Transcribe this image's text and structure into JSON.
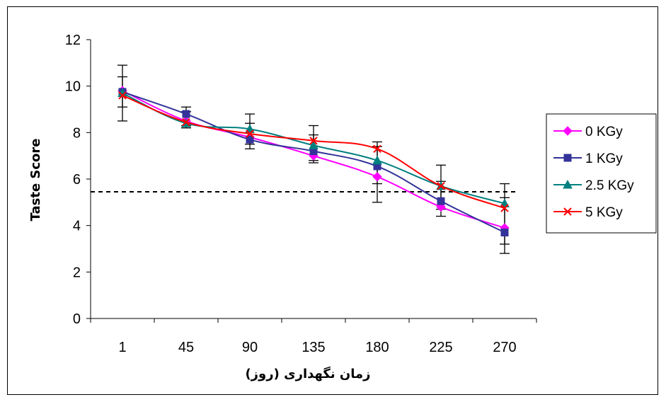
{
  "chart_data": {
    "type": "line",
    "categories": [
      "1",
      "45",
      "90",
      "135",
      "180",
      "225",
      "270"
    ],
    "ylabel": "Taste Score",
    "xlabel": "زمان نگهداری (روز)",
    "ylim": [
      0,
      12
    ],
    "yticks": [
      "0",
      "2",
      "4",
      "6",
      "8",
      "10",
      "12"
    ],
    "reference_line": {
      "value": 5.45,
      "style": "dashed"
    },
    "legend_position": "right",
    "series": [
      {
        "name": "0 KGy",
        "color": "#ff00ff",
        "marker": "diamond",
        "values": [
          9.8,
          8.5,
          7.8,
          7.0,
          6.1,
          4.8,
          3.9
        ]
      },
      {
        "name": "1 KGy",
        "color": "#333399",
        "marker": "square",
        "values": [
          9.75,
          8.8,
          7.7,
          7.2,
          6.55,
          5.05,
          3.7
        ]
      },
      {
        "name": "2.5 KGy",
        "color": "#00807f",
        "marker": "triangle",
        "values": [
          9.7,
          8.4,
          8.15,
          7.45,
          6.8,
          5.7,
          4.95
        ]
      },
      {
        "name": "5 KGy",
        "color": "#ff0000",
        "marker": "x",
        "values": [
          9.6,
          8.45,
          7.95,
          7.65,
          7.3,
          5.7,
          4.75
        ]
      }
    ],
    "error_bars": [
      {
        "category": "1",
        "low": 8.5,
        "high": 10.9
      },
      {
        "category": "1",
        "low": 9.1,
        "high": 10.4
      },
      {
        "category": "45",
        "low": 8.2,
        "high": 9.1
      },
      {
        "category": "45",
        "low": 8.3,
        "high": 8.9
      },
      {
        "category": "90",
        "low": 7.3,
        "high": 8.8
      },
      {
        "category": "90",
        "low": 7.5,
        "high": 8.4
      },
      {
        "category": "135",
        "low": 6.7,
        "high": 8.3
      },
      {
        "category": "135",
        "low": 6.8,
        "high": 7.9
      },
      {
        "category": "180",
        "low": 5.0,
        "high": 7.6
      },
      {
        "category": "180",
        "low": 5.8,
        "high": 7.4
      },
      {
        "category": "225",
        "low": 4.4,
        "high": 6.6
      },
      {
        "category": "225",
        "low": 4.7,
        "high": 5.9
      },
      {
        "category": "270",
        "low": 2.8,
        "high": 5.8
      },
      {
        "category": "270",
        "low": 3.2,
        "high": 5.2
      }
    ]
  }
}
